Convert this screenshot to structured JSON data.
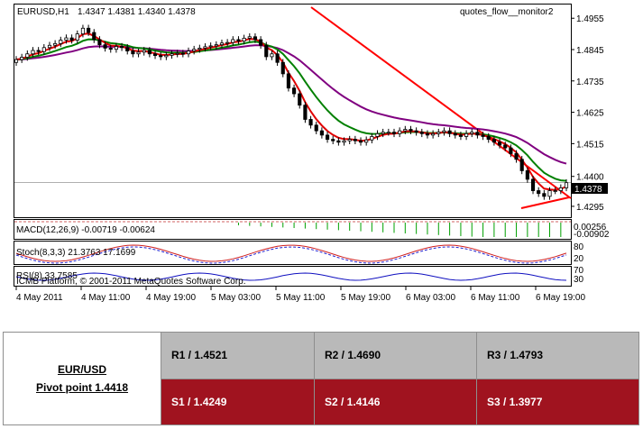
{
  "chart": {
    "symbol_label": "EURUSD,H1",
    "ohlc_label": "1.4347 1.4381 1.4340 1.4378",
    "indicator_label": "quotes_flow__monitor2",
    "price_ticks": [
      "1.4955",
      "1.4845",
      "1.4735",
      "1.4625",
      "1.4515",
      "1.4400",
      "1.4295"
    ],
    "current_price": "1.4378",
    "macd_label": "MACD(12,26,9) -0.00719 -0.00624",
    "macd_ticks": [
      "0.00256",
      "-0.00902"
    ],
    "stoch_label": "Stoch(8,3,3) 21.3763 17.1699",
    "stoch_ticks": [
      "80",
      "20"
    ],
    "rsi_label": "RSI(8) 33.7585",
    "rsi_ticks": [
      "70",
      "30"
    ],
    "copyright": "ICMB Platform, © 2001-2011 MetaQuotes Software Corp.",
    "time_labels": [
      "4 May 2011",
      "4 May 11:00",
      "4 May 19:00",
      "5 May 03:00",
      "5 May 11:00",
      "5 May 19:00",
      "6 May 03:00",
      "6 May 11:00",
      "6 May 19:00"
    ],
    "colors": {
      "ema_fast": "#e00000",
      "ema_mid": "#008000",
      "ema_slow": "#800080",
      "trendline": "#ff0000",
      "macd_hist": "#00a000",
      "rsi": "#1010c0"
    }
  },
  "chart_data": {
    "type": "candlestick",
    "series": [
      {
        "name": "EURUSD,H1",
        "close": [
          1.481,
          1.4818,
          1.483,
          1.4842,
          1.4838,
          1.4852,
          1.486,
          1.4866,
          1.4878,
          1.4886,
          1.4878,
          1.49,
          1.492,
          1.4905,
          1.488,
          1.4862,
          1.485,
          1.4846,
          1.4856,
          1.4852,
          1.484,
          1.483,
          1.4836,
          1.4842,
          1.483,
          1.4824,
          1.482,
          1.4825,
          1.483,
          1.4832,
          1.483,
          1.484,
          1.4846,
          1.485,
          1.4855,
          1.4858,
          1.4862,
          1.4868,
          1.487,
          1.488,
          1.4875,
          1.4885,
          1.489,
          1.488,
          1.486,
          1.482,
          1.483,
          1.48,
          1.476,
          1.471,
          1.469,
          1.465,
          1.46,
          1.458,
          1.456,
          1.4545,
          1.453,
          1.4525,
          1.452,
          1.4525,
          1.453,
          1.4525,
          1.452,
          1.4528,
          1.454,
          1.455,
          1.4555,
          1.4555,
          1.455,
          1.456,
          1.4565,
          1.456,
          1.4555,
          1.455,
          1.4545,
          1.455,
          1.4555,
          1.456,
          1.455,
          1.4545,
          1.454,
          1.455,
          1.4555,
          1.4545,
          1.454,
          1.453,
          1.452,
          1.451,
          1.45,
          1.448,
          1.446,
          1.442,
          1.439,
          1.435,
          1.434,
          1.433,
          1.435,
          1.435,
          1.436,
          1.4378
        ]
      }
    ],
    "ylim": [
      1.426,
      1.5
    ]
  },
  "pivot": {
    "pair": "EUR/USD",
    "pivot_label": "Pivot point 1.4418",
    "r1": "R1 / 1.4521",
    "r2": "R2 / 1.4690",
    "r3": "R3 / 1.4793",
    "s1": "S1 / 1.4249",
    "s2": "S2 / 1.4146",
    "s3": "S3 / 1.3977"
  }
}
